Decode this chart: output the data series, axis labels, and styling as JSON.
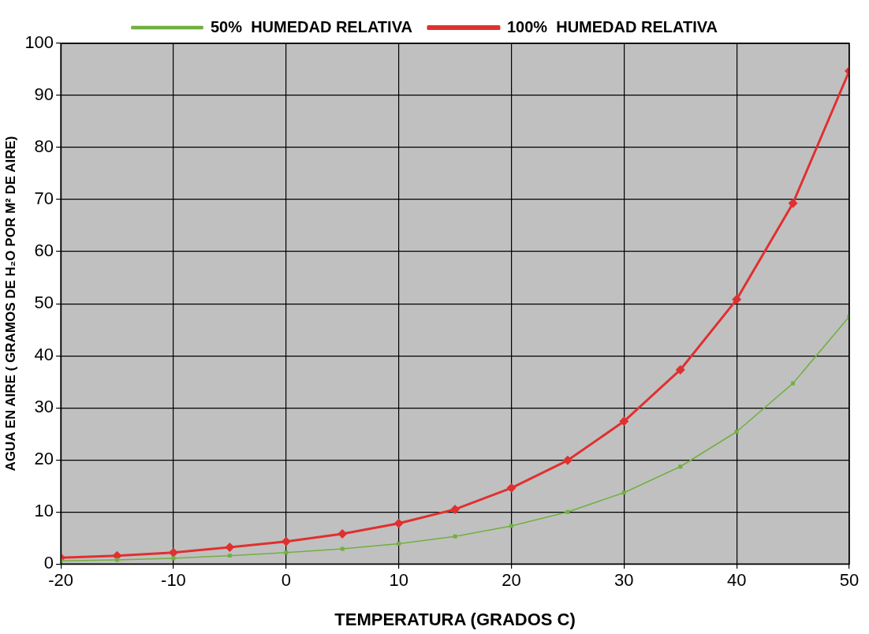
{
  "chart_data": {
    "type": "line",
    "xlabel": "TEMPERATURA (GRADOS C)",
    "ylabel": "AGUA EN AIRE ( GRAMOS DE H₂O POR M² DE AIRE)",
    "x": [
      -20,
      -15,
      -10,
      -5,
      0,
      5,
      10,
      15,
      20,
      25,
      30,
      35,
      40,
      45,
      50
    ],
    "series": [
      {
        "name": "100%  HUMEDAD RELATIVA",
        "color": "#e03030",
        "marker": "diamond",
        "values": [
          1.2,
          1.6,
          2.2,
          3.2,
          4.3,
          5.8,
          7.8,
          10.5,
          14.6,
          19.9,
          27.4,
          37.3,
          50.8,
          69.3,
          94.7
        ]
      },
      {
        "name": "50%  HUMEDAD RELATIVA",
        "color": "#70b040",
        "marker": "square",
        "values": [
          0.6,
          0.8,
          1.1,
          1.6,
          2.2,
          2.9,
          3.9,
          5.3,
          7.3,
          10,
          13.7,
          18.7,
          25.4,
          34.7,
          47.5
        ]
      }
    ],
    "xlim": [
      -20,
      50
    ],
    "xticks": [
      -20,
      -10,
      0,
      10,
      20,
      30,
      40,
      50
    ],
    "ylim": [
      0,
      100
    ],
    "yticks": [
      0,
      10,
      20,
      30,
      40,
      50,
      60,
      70,
      80,
      90,
      100
    ],
    "grid": true,
    "legend": "top",
    "line_style": "solid"
  }
}
